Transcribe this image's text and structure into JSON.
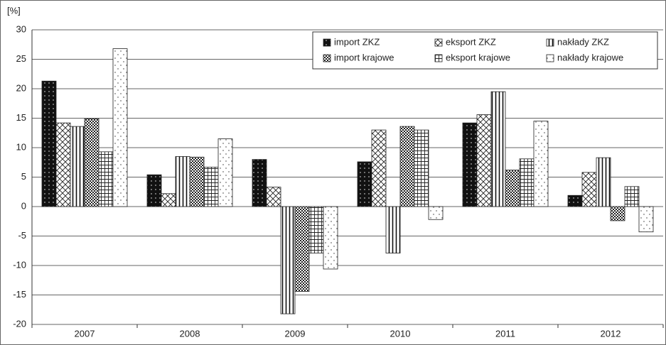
{
  "chart_data": {
    "type": "bar",
    "y_unit_label": "[%]",
    "categories": [
      "2007",
      "2008",
      "2009",
      "2010",
      "2011",
      "2012"
    ],
    "series": [
      {
        "name": "import ZKZ",
        "pattern": "dots-on-black",
        "values": [
          21.3,
          5.4,
          8.0,
          7.6,
          14.2,
          1.9
        ]
      },
      {
        "name": "eksport ZKZ",
        "pattern": "cross-hatch",
        "values": [
          14.2,
          2.2,
          3.3,
          13.0,
          15.6,
          5.8
        ]
      },
      {
        "name": "nakłady ZKZ",
        "pattern": "vertical-lines",
        "values": [
          13.6,
          8.5,
          -18.2,
          -7.9,
          19.5,
          8.3
        ]
      },
      {
        "name": "import krajowe",
        "pattern": "checker",
        "values": [
          14.9,
          8.4,
          -14.4,
          13.6,
          6.2,
          -2.4
        ]
      },
      {
        "name": "eksport krajowe",
        "pattern": "grid",
        "values": [
          9.3,
          6.7,
          -7.9,
          13.0,
          8.1,
          3.4
        ]
      },
      {
        "name": "nakłady krajowe",
        "pattern": "sparse-dots",
        "values": [
          26.8,
          11.5,
          -10.6,
          -2.2,
          14.5,
          -4.3
        ]
      }
    ],
    "ylim": [
      -20,
      30
    ],
    "yticks": [
      -20,
      -15,
      -10,
      -5,
      0,
      5,
      10,
      15,
      20,
      25,
      30
    ],
    "grid": true,
    "legend": "top-right"
  }
}
